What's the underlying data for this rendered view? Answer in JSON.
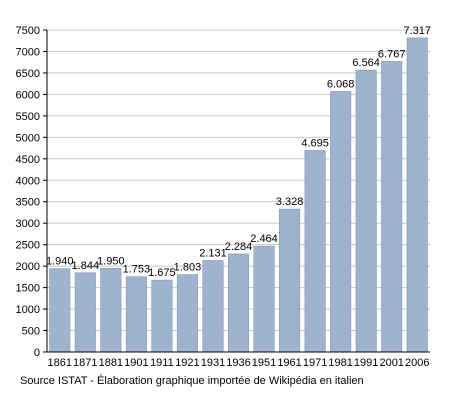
{
  "chart_data": {
    "type": "bar",
    "categories": [
      "1861",
      "1871",
      "1881",
      "1901",
      "1911",
      "1921",
      "1931",
      "1936",
      "1951",
      "1961",
      "1971",
      "1981",
      "1991",
      "2001",
      "2006"
    ],
    "values": [
      1940,
      1844,
      1950,
      1753,
      1675,
      1803,
      2131,
      2284,
      2464,
      3328,
      4695,
      6068,
      6564,
      6767,
      7317
    ],
    "data_labels": [
      "1.940",
      "1.844",
      "1.950",
      "1.753",
      "1.675",
      "1.803",
      "2.131",
      "2.284",
      "2.464",
      "3.328",
      "4.695",
      "6.068",
      "6.564",
      "6.767",
      "7.317"
    ],
    "y_ticks": [
      "0",
      "500",
      "1000",
      "1500",
      "2000",
      "2500",
      "3000",
      "3500",
      "4000",
      "4500",
      "5000",
      "5500",
      "6000",
      "6500",
      "7000",
      "7500"
    ],
    "ylim": [
      0,
      7500
    ],
    "grid": true,
    "bar_color": "#9fb3cf",
    "bar_edge_color": "#7f95b5",
    "grid_color": "#c8c8c8"
  },
  "source": "Source ISTAT - Élaboration graphique importée de Wikipédia en italien"
}
